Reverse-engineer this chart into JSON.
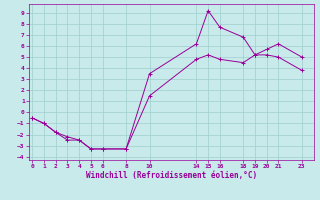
{
  "title": "",
  "xlabel": "Windchill (Refroidissement éolien,°C)",
  "ylabel": "",
  "bg_color": "#c8eaea",
  "line_color": "#990099",
  "grid_color": "#9ecece",
  "xlim": [
    -0.3,
    24.0
  ],
  "ylim": [
    -4.3,
    9.8
  ],
  "xticks": [
    0,
    1,
    2,
    3,
    4,
    5,
    6,
    8,
    10,
    14,
    15,
    16,
    18,
    19,
    20,
    21,
    23
  ],
  "yticks": [
    -4,
    -3,
    -2,
    -1,
    0,
    1,
    2,
    3,
    4,
    5,
    6,
    7,
    8,
    9
  ],
  "line1_x": [
    0,
    1,
    2,
    3,
    4,
    5,
    6,
    8,
    10,
    14,
    15,
    16,
    18,
    19,
    20,
    21,
    23
  ],
  "line1_y": [
    -0.5,
    -1.0,
    -1.8,
    -2.5,
    -2.5,
    -3.3,
    -3.3,
    -3.3,
    3.5,
    6.2,
    9.2,
    7.7,
    6.8,
    5.2,
    5.7,
    6.2,
    5.0
  ],
  "line2_x": [
    0,
    1,
    2,
    3,
    4,
    5,
    6,
    8,
    10,
    14,
    15,
    16,
    18,
    19,
    20,
    21,
    23
  ],
  "line2_y": [
    -0.5,
    -1.0,
    -1.8,
    -2.2,
    -2.5,
    -3.3,
    -3.3,
    -3.3,
    1.5,
    4.8,
    5.2,
    4.8,
    4.5,
    5.2,
    5.2,
    5.0,
    3.8
  ],
  "marker_size": 2.5,
  "line_width": 0.7,
  "font_size_label": 5.5,
  "font_size_tick": 4.5
}
